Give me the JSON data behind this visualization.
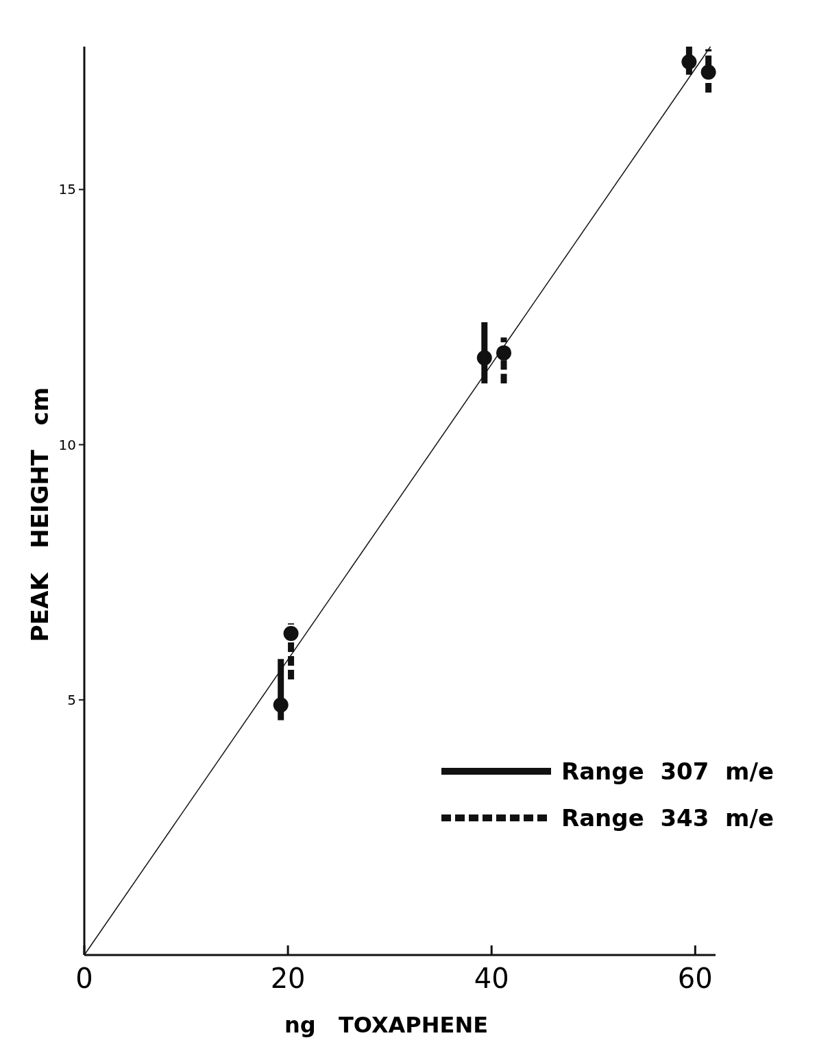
{
  "chart_data": {
    "type": "scatter",
    "xlabel": "ng   TOXAPHENE",
    "ylabel": "PEAK   HEIGHT   cm",
    "xlim": [
      0,
      62
    ],
    "ylim": [
      0,
      17.8
    ],
    "xticks": [
      0,
      20,
      40,
      60
    ],
    "yticks": [
      5,
      10,
      15
    ],
    "legend": "bottom right",
    "marker": "circle",
    "grid": false,
    "series": [
      {
        "name": "Range  307  m/e",
        "color": "#111111",
        "x": [
          19.3,
          39.3,
          59.4
        ],
        "values": [
          4.9,
          11.7,
          17.5
        ],
        "errors": [
          [
            4.6,
            5.8
          ],
          [
            11.2,
            12.4
          ],
          [
            17.25,
            17.8
          ]
        ],
        "line_style": "solid"
      },
      {
        "name": "Range  343  m/e",
        "color": "#111111",
        "x": [
          20.3,
          41.2,
          61.3
        ],
        "values": [
          6.3,
          11.8,
          17.3
        ],
        "errors": [
          [
            5.4,
            6.5
          ],
          [
            11.2,
            12.1
          ],
          [
            16.9,
            17.75
          ]
        ],
        "line_style": "dashed"
      },
      {
        "type": "line",
        "marker": "none",
        "color": "#111111",
        "x": [
          0,
          61.5
        ],
        "values": [
          0,
          17.8
        ],
        "line_style": "solid"
      }
    ]
  }
}
